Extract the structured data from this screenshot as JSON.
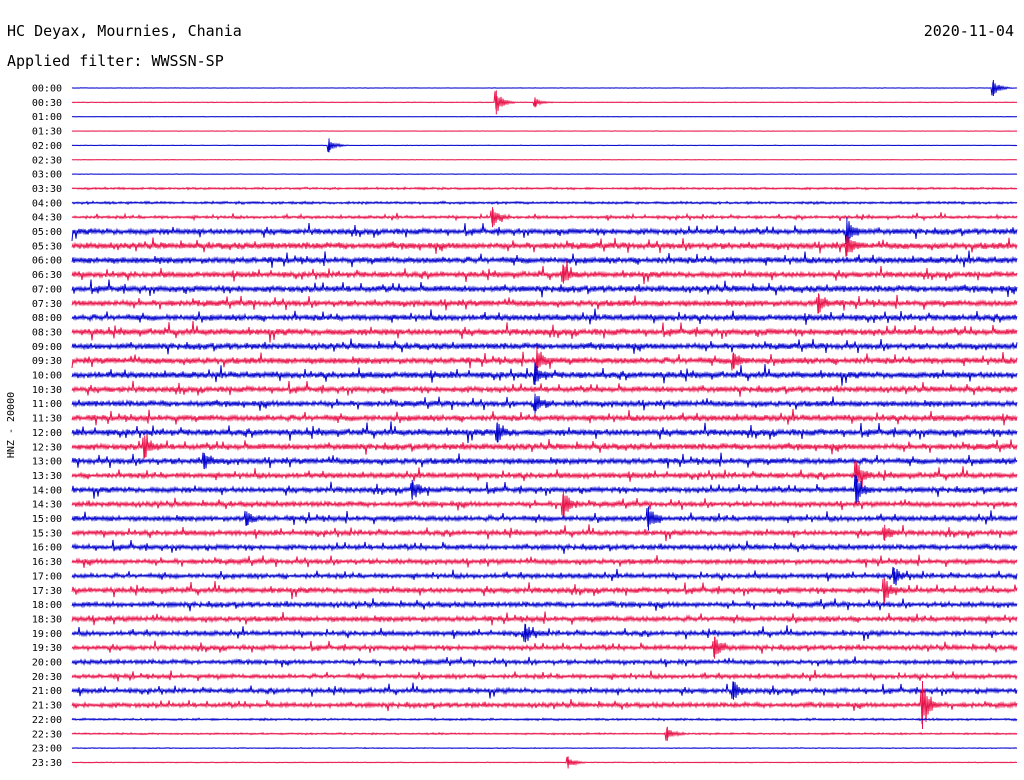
{
  "station": "HC Deyax, Mournies, Chania",
  "date": "2020-11-04",
  "filter_text": "Applied filter: WWSSN-SP",
  "channel_label": "HNZ - 20000",
  "colors": {
    "odd_row": "#0000cc",
    "even_row": "#e8134a",
    "text": "#000000"
  },
  "chart_data": {
    "type": "line",
    "title": "HC Deyax, Mournies, Chania",
    "subtitle": "Applied filter: WWSSN-SP",
    "ylabel": "HNZ - 20000",
    "rows": [
      "00:00",
      "00:30",
      "01:00",
      "01:30",
      "02:00",
      "02:30",
      "03:00",
      "03:30",
      "04:00",
      "04:30",
      "05:00",
      "05:30",
      "06:00",
      "06:30",
      "07:00",
      "07:30",
      "08:00",
      "08:30",
      "09:00",
      "09:30",
      "10:00",
      "10:30",
      "11:00",
      "11:30",
      "12:00",
      "12:30",
      "13:00",
      "13:30",
      "14:00",
      "14:30",
      "15:00",
      "15:30",
      "16:00",
      "16:30",
      "17:00",
      "17:30",
      "18:00",
      "18:30",
      "19:00",
      "19:30",
      "20:00",
      "20:30",
      "21:00",
      "21:30",
      "22:00",
      "22:30",
      "23:00",
      "23:30"
    ],
    "noise_level": [
      0.3,
      0.4,
      0.3,
      0.3,
      0.3,
      0.3,
      0.3,
      1.2,
      1.4,
      1.6,
      3.2,
      3.6,
      3.6,
      3.2,
      3.6,
      3.4,
      3.4,
      3.6,
      3.4,
      3.6,
      3.6,
      3.2,
      3.2,
      3.4,
      3.6,
      3.4,
      3.4,
      3.0,
      3.0,
      2.8,
      3.0,
      2.8,
      2.8,
      2.8,
      2.6,
      3.0,
      2.8,
      3.0,
      2.6,
      2.6,
      2.4,
      2.4,
      2.6,
      2.6,
      1.2,
      1.0,
      0.5,
      0.5
    ],
    "events": [
      {
        "row": 0,
        "t": 0.975,
        "amp": 8
      },
      {
        "row": 1,
        "t": 0.449,
        "amp": 12
      },
      {
        "row": 1,
        "t": 0.49,
        "amp": 5
      },
      {
        "row": 4,
        "t": 0.272,
        "amp": 7
      },
      {
        "row": 9,
        "t": 0.445,
        "amp": 10
      },
      {
        "row": 10,
        "t": 0.82,
        "amp": 14
      },
      {
        "row": 11,
        "t": 0.82,
        "amp": 10
      },
      {
        "row": 13,
        "t": 0.52,
        "amp": 9
      },
      {
        "row": 15,
        "t": 0.79,
        "amp": 10
      },
      {
        "row": 19,
        "t": 0.492,
        "amp": 14
      },
      {
        "row": 19,
        "t": 0.7,
        "amp": 8
      },
      {
        "row": 20,
        "t": 0.49,
        "amp": 10
      },
      {
        "row": 22,
        "t": 0.49,
        "amp": 10
      },
      {
        "row": 24,
        "t": 0.45,
        "amp": 10
      },
      {
        "row": 25,
        "t": 0.077,
        "amp": 11
      },
      {
        "row": 26,
        "t": 0.14,
        "amp": 8
      },
      {
        "row": 27,
        "t": 0.83,
        "amp": 14
      },
      {
        "row": 28,
        "t": 0.36,
        "amp": 10
      },
      {
        "row": 28,
        "t": 0.83,
        "amp": 14
      },
      {
        "row": 29,
        "t": 0.52,
        "amp": 13
      },
      {
        "row": 30,
        "t": 0.61,
        "amp": 12
      },
      {
        "row": 30,
        "t": 0.185,
        "amp": 7
      },
      {
        "row": 31,
        "t": 0.86,
        "amp": 8
      },
      {
        "row": 34,
        "t": 0.87,
        "amp": 8
      },
      {
        "row": 35,
        "t": 0.86,
        "amp": 12
      },
      {
        "row": 38,
        "t": 0.48,
        "amp": 9
      },
      {
        "row": 39,
        "t": 0.68,
        "amp": 11
      },
      {
        "row": 42,
        "t": 0.7,
        "amp": 9
      },
      {
        "row": 43,
        "t": 0.9,
        "amp": 24
      },
      {
        "row": 45,
        "t": 0.63,
        "amp": 7
      },
      {
        "row": 47,
        "t": 0.525,
        "amp": 6
      }
    ]
  }
}
